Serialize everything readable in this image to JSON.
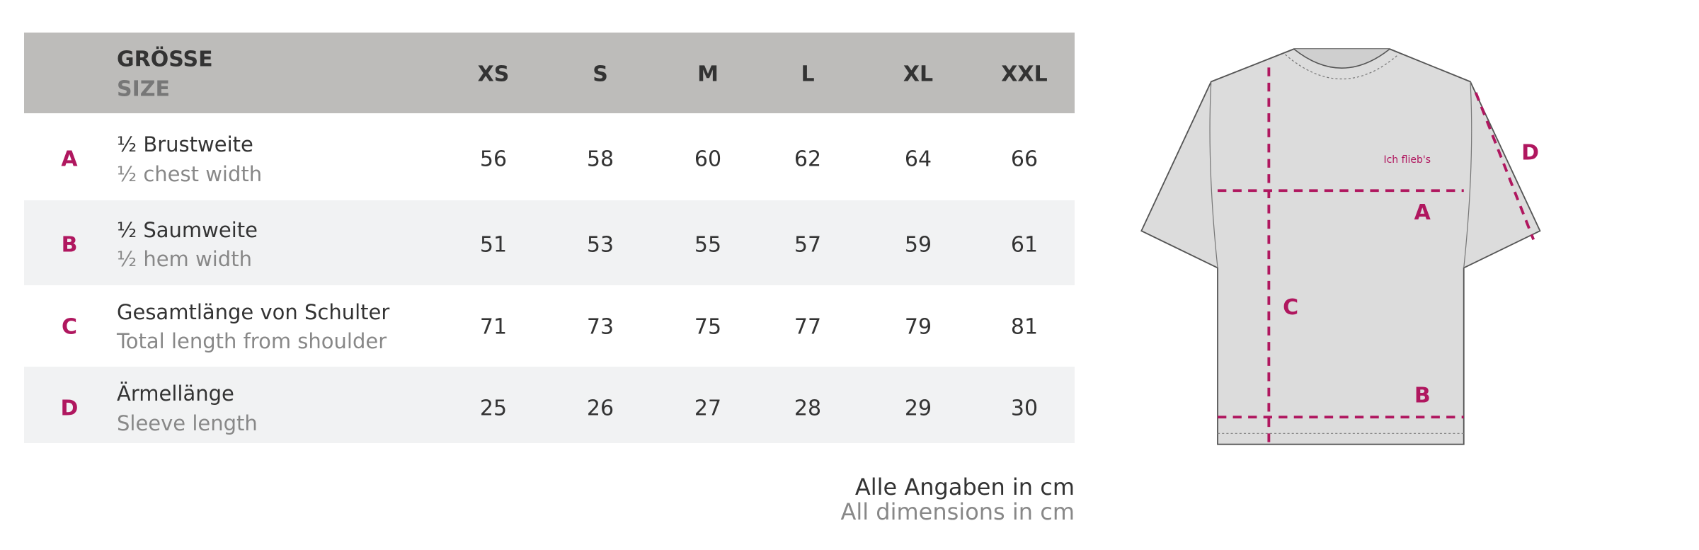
{
  "header": {
    "title_de": "GRÖSSE",
    "title_en": "SIZE",
    "sizes": [
      "XS",
      "S",
      "M",
      "L",
      "XL",
      "XXL"
    ]
  },
  "rows": [
    {
      "letter": "A",
      "de": "½ Brustweite",
      "en": "½ chest width",
      "values": [
        "56",
        "58",
        "60",
        "62",
        "64",
        "66"
      ]
    },
    {
      "letter": "B",
      "de": "½ Saumweite",
      "en": "½ hem width",
      "values": [
        "51",
        "53",
        "55",
        "57",
        "59",
        "61"
      ]
    },
    {
      "letter": "C",
      "de": "Gesamtlänge von Schulter",
      "en": "Total length from shoulder",
      "values": [
        "71",
        "73",
        "75",
        "77",
        "79",
        "81"
      ]
    },
    {
      "letter": "D",
      "de": "Ärmellänge",
      "en": "Sleeve length",
      "values": [
        "25",
        "26",
        "27",
        "28",
        "29",
        "30"
      ]
    }
  ],
  "footer": {
    "de": "Alle Angaben in cm",
    "en": "All dimensions in cm"
  },
  "diagram": {
    "brand": "Ich flieb's",
    "labels": [
      "A",
      "B",
      "C",
      "D"
    ]
  }
}
